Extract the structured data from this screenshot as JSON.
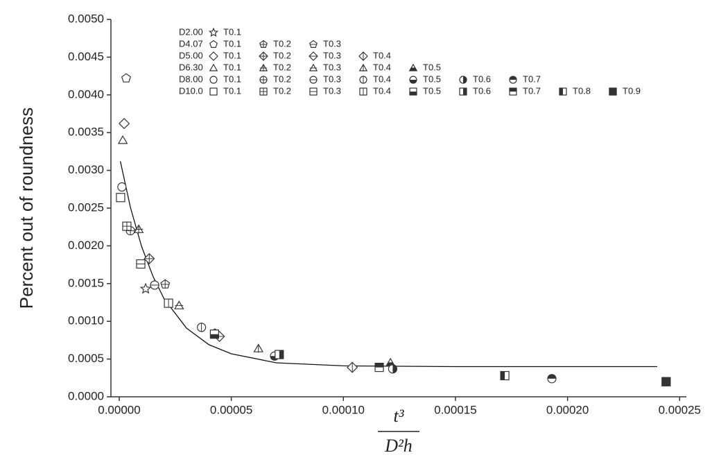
{
  "chart_data": {
    "type": "scatter",
    "ylabel": "Percent out of roundness",
    "xlabel_numerator": "t³",
    "xlabel_denominator": "D²h",
    "xlim": [
      -3.7e-06,
      0.000253
    ],
    "ylim": [
      0,
      0.005
    ],
    "xticks": [
      {
        "value": 0,
        "label": "0.00000"
      },
      {
        "value": 5e-05,
        "label": "0.00005"
      },
      {
        "value": 0.0001,
        "label": "0.00010"
      },
      {
        "value": 0.00015,
        "label": "0.00015"
      },
      {
        "value": 0.0002,
        "label": "0.00020"
      },
      {
        "value": 0.00025,
        "label": "0.00025"
      }
    ],
    "yticks": [
      {
        "value": 0,
        "label": "0.0000"
      },
      {
        "value": 0.0005,
        "label": "0.0005"
      },
      {
        "value": 0.001,
        "label": "0.0010"
      },
      {
        "value": 0.0015,
        "label": "0.0015"
      },
      {
        "value": 0.002,
        "label": "0.0020"
      },
      {
        "value": 0.0025,
        "label": "0.0025"
      },
      {
        "value": 0.003,
        "label": "0.0030"
      },
      {
        "value": 0.0035,
        "label": "0.0035"
      },
      {
        "value": 0.004,
        "label": "0.0040"
      },
      {
        "value": 0.0045,
        "label": "0.0045"
      },
      {
        "value": 0.005,
        "label": "0.0050"
      }
    ],
    "color": "#333333",
    "groups": [
      {
        "label": "D2.00",
        "marker": "star",
        "series": [
          {
            "name": "T0.1",
            "x": [
              1.18e-05
            ],
            "values": [
              0.00143
            ]
          }
        ]
      },
      {
        "label": "D4.07",
        "marker": "pentagon",
        "series": [
          {
            "name": "T0.1",
            "x": [
              3.1e-06
            ],
            "values": [
              0.00422
            ]
          },
          {
            "name": "T0.2",
            "x": [
              2.05e-05
            ],
            "values": [
              0.00149
            ]
          },
          {
            "name": "T0.3",
            "x": [
              4.27e-05
            ],
            "values": [
              0.00084
            ]
          }
        ]
      },
      {
        "label": "D5.00",
        "marker": "diamond",
        "series": [
          {
            "name": "T0.1",
            "x": [
              2.2e-06
            ],
            "values": [
              0.00362
            ]
          },
          {
            "name": "T0.2",
            "x": [
              1.34e-05
            ],
            "values": [
              0.00183
            ]
          },
          {
            "name": "T0.3",
            "x": [
              4.47e-05
            ],
            "values": [
              0.0008
            ]
          },
          {
            "name": "T0.4",
            "x": [
              0.000104
            ],
            "values": [
              0.00039
            ]
          }
        ]
      },
      {
        "label": "D6.30",
        "marker": "triangle",
        "series": [
          {
            "name": "T0.1",
            "x": [
              1.6e-06
            ],
            "values": [
              0.0034
            ]
          },
          {
            "name": "T0.2",
            "x": [
              8.7e-06
            ],
            "values": [
              0.00222
            ]
          },
          {
            "name": "T0.3",
            "x": [
              2.67e-05
            ],
            "values": [
              0.00121
            ]
          },
          {
            "name": "T0.4",
            "x": [
              6.21e-05
            ],
            "values": [
              0.00064
            ]
          },
          {
            "name": "T0.5",
            "x": [
              0.000121
            ],
            "values": [
              0.00045
            ]
          }
        ]
      },
      {
        "label": "D8.00",
        "marker": "circle",
        "series": [
          {
            "name": "T0.1",
            "x": [
              1.2e-06
            ],
            "values": [
              0.00278
            ]
          },
          {
            "name": "T0.2",
            "x": [
              5e-06
            ],
            "values": [
              0.0022
            ]
          },
          {
            "name": "T0.3",
            "x": [
              1.58e-05
            ],
            "values": [
              0.00148
            ]
          },
          {
            "name": "T0.4",
            "x": [
              3.67e-05
            ],
            "values": [
              0.00092
            ]
          },
          {
            "name": "T0.5",
            "x": [
              6.93e-05
            ],
            "values": [
              0.00054
            ]
          },
          {
            "name": "T0.6",
            "x": [
              0.000122
            ],
            "values": [
              0.00037
            ]
          },
          {
            "name": "T0.7",
            "x": [
              0.000193
            ],
            "values": [
              0.00024
            ]
          }
        ]
      },
      {
        "label": "D10.0",
        "marker": "square",
        "series": [
          {
            "name": "T0.1",
            "x": [
              6e-07
            ],
            "values": [
              0.00264
            ]
          },
          {
            "name": "T0.2",
            "x": [
              3.4e-06
            ],
            "values": [
              0.00226
            ]
          },
          {
            "name": "T0.3",
            "x": [
              9.6e-06
            ],
            "values": [
              0.00176
            ]
          },
          {
            "name": "T0.4",
            "x": [
              2.2e-05
            ],
            "values": [
              0.00124
            ]
          },
          {
            "name": "T0.5",
            "x": [
              4.25e-05
            ],
            "values": [
              0.00083
            ]
          },
          {
            "name": "T0.6",
            "x": [
              7.14e-05
            ],
            "values": [
              0.00056
            ]
          },
          {
            "name": "T0.7",
            "x": [
              0.000116
            ],
            "values": [
              0.00039
            ]
          },
          {
            "name": "T0.8",
            "x": [
              0.000172
            ],
            "values": [
              0.00028
            ]
          },
          {
            "name": "T0.9",
            "x": [
              0.000244
            ],
            "values": [
              0.0002
            ]
          }
        ]
      }
    ],
    "fit_curve": {
      "x": [
        5e-07,
        5e-06,
        1e-05,
        1.5e-05,
        2e-05,
        3e-05,
        4e-05,
        5e-05,
        7e-05,
        0.0001,
        0.00015,
        0.00024
      ],
      "values": [
        0.00312,
        0.00251,
        0.00199,
        0.0016,
        0.0013,
        0.00091,
        0.00069,
        0.00057,
        0.00045,
        0.00041,
        0.0004,
        0.0004
      ]
    }
  }
}
